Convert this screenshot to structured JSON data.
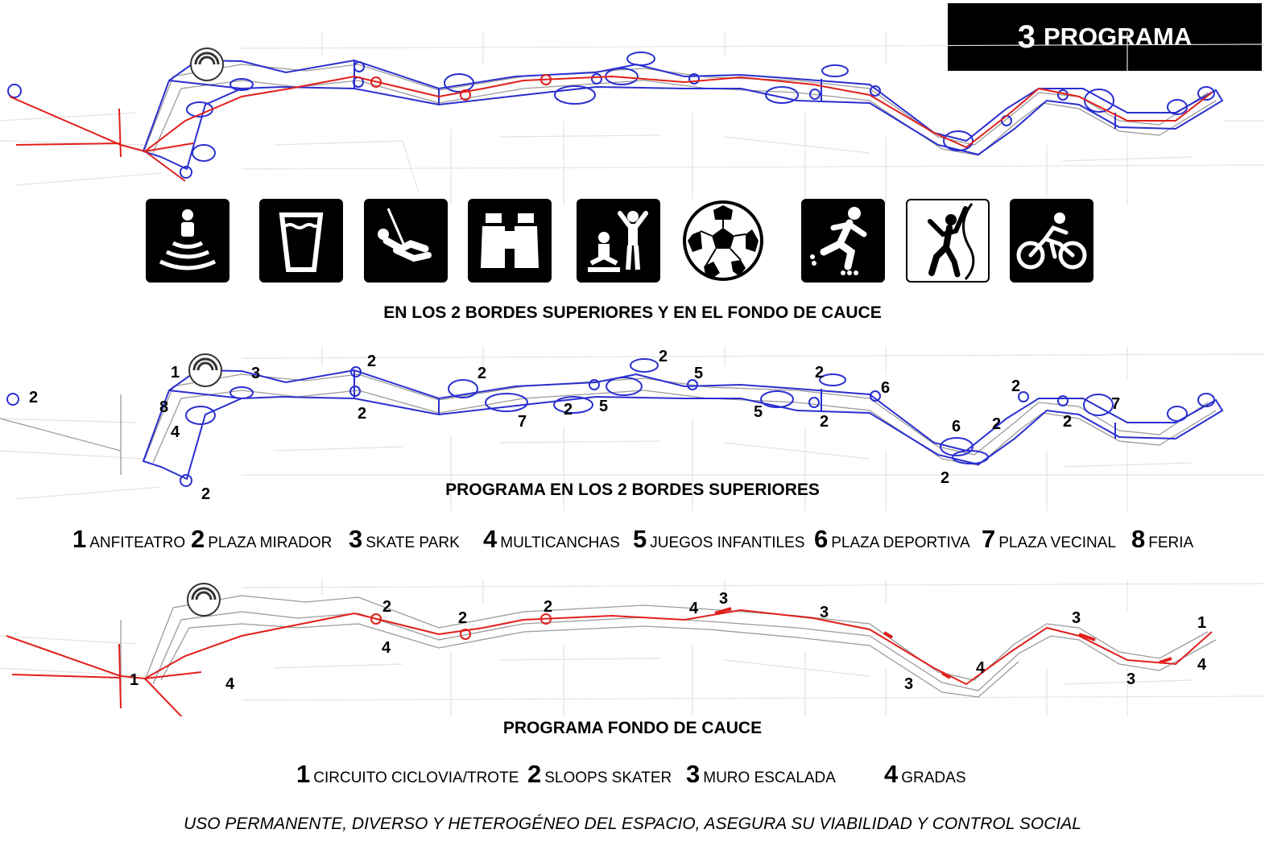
{
  "header": {
    "number": "3",
    "title": "PROGRAMA"
  },
  "icons": [
    {
      "name": "amphitheater-icon",
      "style": "dark"
    },
    {
      "name": "drinking-water-icon",
      "style": "dark"
    },
    {
      "name": "swing-icon",
      "style": "dark"
    },
    {
      "name": "binoculars-icon",
      "style": "dark"
    },
    {
      "name": "children-play-icon",
      "style": "dark"
    },
    {
      "name": "soccer-ball-icon",
      "style": "light"
    },
    {
      "name": "rollerblade-icon",
      "style": "dark"
    },
    {
      "name": "climbing-icon",
      "style": "light"
    },
    {
      "name": "bicycle-icon",
      "style": "dark"
    }
  ],
  "captions": {
    "top": "EN LOS 2 BORDES SUPERIORES Y EN EL FONDO DE CAUCE",
    "middle": "PROGRAMA EN LOS 2 BORDES SUPERIORES",
    "bottom": "PROGRAMA FONDO DE CAUCE"
  },
  "legend_bordes": [
    {
      "num": "1",
      "label": "ANFITEATRO"
    },
    {
      "num": "2",
      "label": "PLAZA MIRADOR"
    },
    {
      "num": "3",
      "label": "SKATE PARK"
    },
    {
      "num": "4",
      "label": "MULTICANCHAS"
    },
    {
      "num": "5",
      "label": "JUEGOS INFANTILES"
    },
    {
      "num": "6",
      "label": "PLAZA DEPORTIVA"
    },
    {
      "num": "7",
      "label": "PLAZA VECINAL"
    },
    {
      "num": "8",
      "label": "FERIA"
    }
  ],
  "legend_fondo": [
    {
      "num": "1",
      "label": "CIRCUITO CICLOVIA/TROTE"
    },
    {
      "num": "2",
      "label": "SLOOPS SKATER"
    },
    {
      "num": "3",
      "label": "MURO ESCALADA"
    },
    {
      "num": "4",
      "label": "GRADAS"
    }
  ],
  "map_bordes_labels": [
    "1",
    "3",
    "8",
    "4",
    "2",
    "2",
    "2",
    "2",
    "2",
    "7",
    "2",
    "5",
    "2",
    "5",
    "5",
    "2",
    "2",
    "6",
    "6",
    "2",
    "2",
    "2",
    "7",
    "2",
    "2"
  ],
  "map_fondo_labels": [
    "1",
    "4",
    "2",
    "4",
    "2",
    "2",
    "4",
    "3",
    "3",
    "3",
    "4",
    "3",
    "3",
    "1",
    "4"
  ],
  "footer": "USO PERMANENTE, DIVERSO Y HETEROGÉNEO DEL ESPACIO, ASEGURA SU VIABILIDAD Y CONTROL SOCIAL",
  "colors": {
    "program_blue": "#2a2fd0",
    "circuit_red": "#e0201c",
    "map_grey": "#c9c9c9"
  }
}
